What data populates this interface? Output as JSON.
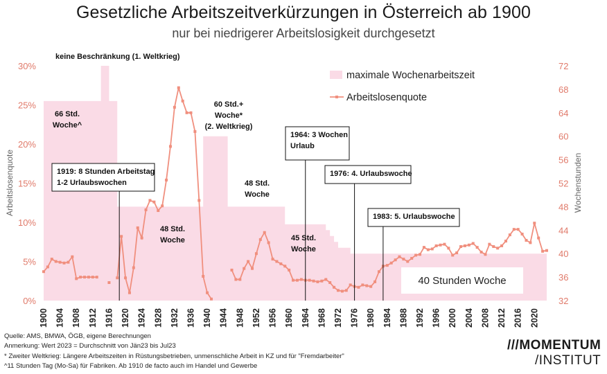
{
  "header": {
    "title": "Gesetzliche Arbeitszeitverkürzungen in Österreich ab 1900",
    "subtitle": "nur bei niedrigerer Arbeitslosigkeit durchgesetzt"
  },
  "colors": {
    "line": "#f08f7e",
    "area": "#fadbe6",
    "axis_text": "#e07a6a"
  },
  "chart_data": {
    "type": "line",
    "xlim": [
      1900,
      2023
    ],
    "x_ticks": [
      1900,
      1904,
      1908,
      1912,
      1916,
      1920,
      1924,
      1928,
      1932,
      1936,
      1940,
      1944,
      1948,
      1952,
      1956,
      1960,
      1964,
      1968,
      1972,
      1976,
      1980,
      1984,
      1988,
      1992,
      1996,
      2000,
      2004,
      2008,
      2012,
      2016,
      2020
    ],
    "y_left": {
      "label": "Arbeitslosenquote",
      "lim": [
        0,
        30
      ],
      "ticks": [
        "0%",
        "5%",
        "10%",
        "15%",
        "20%",
        "25%",
        "30%"
      ],
      "tick_values": [
        0,
        5,
        10,
        15,
        20,
        25,
        30
      ]
    },
    "y_right": {
      "label": "Wochenstunden",
      "lim": [
        32,
        72
      ],
      "ticks": [
        32,
        36,
        40,
        44,
        48,
        52,
        56,
        60,
        64,
        68,
        72
      ]
    },
    "series": [
      {
        "name": "maximale Wochenarbeitszeit",
        "type": "area",
        "axis": "right",
        "x": [
          1900,
          1914,
          1914,
          1916,
          1916,
          1918,
          1918,
          1939,
          1939,
          1945,
          1945,
          1959,
          1959,
          1969,
          1969,
          1970,
          1970,
          1971,
          1971,
          1972,
          1972,
          1975,
          1975,
          2023
        ],
        "values": [
          66,
          66,
          72,
          72,
          66,
          66,
          48,
          48,
          60,
          60,
          48,
          48,
          45,
          45,
          44,
          44,
          43,
          43,
          42,
          42,
          41,
          41,
          40,
          40
        ]
      },
      {
        "name": "Arbeitslosenquote",
        "type": "line",
        "axis": "left",
        "segments": [
          {
            "x": [
              1900,
              1901,
              1902,
              1903,
              1904,
              1905,
              1906,
              1907,
              1908,
              1909,
              1910,
              1911,
              1912,
              1913
            ],
            "values": [
              3.7,
              4.3,
              5.3,
              5.0,
              4.9,
              4.8,
              4.9,
              5.6,
              2.8,
              3.0,
              3.0,
              3.0,
              3.0,
              3.0
            ]
          },
          {
            "x": [
              1916
            ],
            "values": [
              2.3
            ]
          },
          {
            "x": [
              1918,
              1919,
              1920,
              1921,
              1922,
              1923,
              1924,
              1925,
              1926,
              1927,
              1928,
              1929,
              1930,
              1931,
              1932,
              1933,
              1934,
              1935,
              1936,
              1937,
              1938,
              1939,
              1940,
              1941
            ],
            "values": [
              2.9,
              8.2,
              2.9,
              1.0,
              4.2,
              9.3,
              8.0,
              11.6,
              12.8,
              12.6,
              11.5,
              12.1,
              15.4,
              19.7,
              24.7,
              27.2,
              25.5,
              24.0,
              24.0,
              21.6,
              12.8,
              3.1,
              1.0,
              0.2
            ]
          },
          {
            "x": [
              1946,
              1947,
              1948,
              1949,
              1950,
              1951,
              1952,
              1953,
              1954,
              1955,
              1956,
              1957,
              1958,
              1959,
              1960,
              1961,
              1962,
              1963,
              1964,
              1965,
              1966,
              1967,
              1968,
              1969,
              1970,
              1971,
              1972,
              1973,
              1974,
              1975,
              1976,
              1977,
              1978,
              1979,
              1980,
              1981,
              1982,
              1983,
              1984,
              1985,
              1986,
              1987,
              1988,
              1989,
              1990,
              1991,
              1992,
              1993,
              1994,
              1995,
              1996,
              1997,
              1998,
              1999,
              2000,
              2001,
              2002,
              2003,
              2004,
              2005,
              2006,
              2007,
              2008,
              2009,
              2010,
              2011,
              2012,
              2013,
              2014,
              2015,
              2016,
              2017,
              2018,
              2019,
              2020,
              2021,
              2022,
              2023
            ],
            "values": [
              3.9,
              2.7,
              2.7,
              4.1,
              5.0,
              4.1,
              6.0,
              7.8,
              8.7,
              7.4,
              5.3,
              5.0,
              4.7,
              4.4,
              3.9,
              2.6,
              2.6,
              2.7,
              2.6,
              2.6,
              2.5,
              2.4,
              2.5,
              2.7,
              2.3,
              1.7,
              1.3,
              1.2,
              1.3,
              2.0,
              1.8,
              1.7,
              2.0,
              1.9,
              1.8,
              2.4,
              3.7,
              4.4,
              4.5,
              4.8,
              5.2,
              5.6,
              5.3,
              5.0,
              5.4,
              5.8,
              5.9,
              6.8,
              6.5,
              6.6,
              7.0,
              7.1,
              7.2,
              6.7,
              5.8,
              6.1,
              6.9,
              7.0,
              7.1,
              7.3,
              6.8,
              6.2,
              5.9,
              7.2,
              6.9,
              6.7,
              7.0,
              7.6,
              8.4,
              9.1,
              9.1,
              8.5,
              7.7,
              7.4,
              9.9,
              8.0,
              6.3,
              6.4
            ]
          }
        ]
      }
    ],
    "legend": [
      "maximale Wochenarbeitszeit",
      "Arbeitslosenquote"
    ],
    "legend_position": "top-right"
  },
  "annotations": {
    "keine": "keine Beschränkung (1. Weltkrieg)",
    "h66": [
      "66 Std.",
      "Woche^"
    ],
    "h60": [
      "60 Std.+",
      "Woche*",
      "(2. Weltkrieg)"
    ],
    "h48a": [
      "48 Std.",
      "Woche"
    ],
    "h48b": [
      "48 Std.",
      "Woche"
    ],
    "h45": [
      "45 Std.",
      "Woche"
    ],
    "h40": "40 Stunden Woche",
    "e1919": [
      "1919: 8 Stunden Arbeitstag",
      "1-2 Urlaubswochen"
    ],
    "e1964": [
      "1964: 3 Wochen",
      "Urlaub"
    ],
    "e1976": "1976: 4. Urlaubswoche",
    "e1983": "1983: 5. Urlaubswoche"
  },
  "footer": {
    "source": "Quelle: AMS, BMWA, ÖGB, eigene Berechnungen",
    "note": "Anmerkung: Wert 2023 = Durchschnitt von Jän23 bis Jul23",
    "star": "* Zweiter Weltkrieg: Längere Arbeitszeiten in Rüstungsbetrieben, unmenschliche Arbeit in KZ und für \"Fremdarbeiter\"",
    "caret": "^11 Stunden Tag (Mo-Sa) für Fabriken. Ab 1910 de facto auch im Handel und Gewerbe"
  },
  "logo": {
    "line1": "MOMENTUM",
    "line2": "INSTITUT"
  }
}
